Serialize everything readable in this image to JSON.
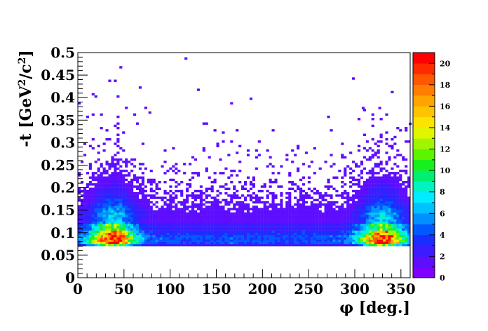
{
  "chart_data": {
    "type": "heatmap",
    "title": "",
    "xlabel": "φ [deg.]",
    "ylabel": "-t [GeV²/c²]",
    "xlim": [
      0,
      360
    ],
    "ylim": [
      0,
      0.5
    ],
    "x_ticks": [
      "0",
      "50",
      "100",
      "150",
      "200",
      "250",
      "300",
      "350"
    ],
    "y_ticks": [
      "0",
      "0.05",
      "0.1",
      "0.15",
      "0.2",
      "0.25",
      "0.3",
      "0.35",
      "0.4",
      "0.45",
      "0.5"
    ],
    "z_range": [
      0,
      21
    ],
    "colorbar_ticks": [
      "0",
      "2",
      "4",
      "6",
      "8",
      "10",
      "12",
      "14",
      "16",
      "18",
      "20"
    ],
    "bins": {
      "nx": 120,
      "ny": 100
    },
    "grid": false,
    "description_of_density": "events concentrated at -t between 0.07 and 0.14, with maxima near phi 30-50 and 320-340 deg; sparse tail up to ~0.49",
    "sample_cells": [
      {
        "phi": 30,
        "t": 0.087,
        "z": 19
      },
      {
        "phi": 36,
        "t": 0.087,
        "z": 20
      },
      {
        "phi": 42,
        "t": 0.083,
        "z": 18
      },
      {
        "phi": 48,
        "t": 0.087,
        "z": 17
      },
      {
        "phi": 24,
        "t": 0.092,
        "z": 12
      },
      {
        "phi": 54,
        "t": 0.092,
        "z": 10
      },
      {
        "phi": 66,
        "t": 0.087,
        "z": 8
      },
      {
        "phi": 90,
        "t": 0.087,
        "z": 5
      },
      {
        "phi": 150,
        "t": 0.087,
        "z": 3
      },
      {
        "phi": 200,
        "t": 0.087,
        "z": 2
      },
      {
        "phi": 260,
        "t": 0.087,
        "z": 4
      },
      {
        "phi": 300,
        "t": 0.087,
        "z": 7
      },
      {
        "phi": 318,
        "t": 0.087,
        "z": 12
      },
      {
        "phi": 326,
        "t": 0.087,
        "z": 17
      },
      {
        "phi": 332,
        "t": 0.083,
        "z": 15
      },
      {
        "phi": 342,
        "t": 0.087,
        "z": 14
      },
      {
        "phi": 117,
        "t": 0.487,
        "z": 1
      },
      {
        "phi": 78,
        "t": 0.367,
        "z": 1
      },
      {
        "phi": 360,
        "t": 0.342,
        "z": 1
      },
      {
        "phi": 309,
        "t": 0.377,
        "z": 1
      },
      {
        "phi": 327,
        "t": 0.377,
        "z": 1
      }
    ]
  }
}
